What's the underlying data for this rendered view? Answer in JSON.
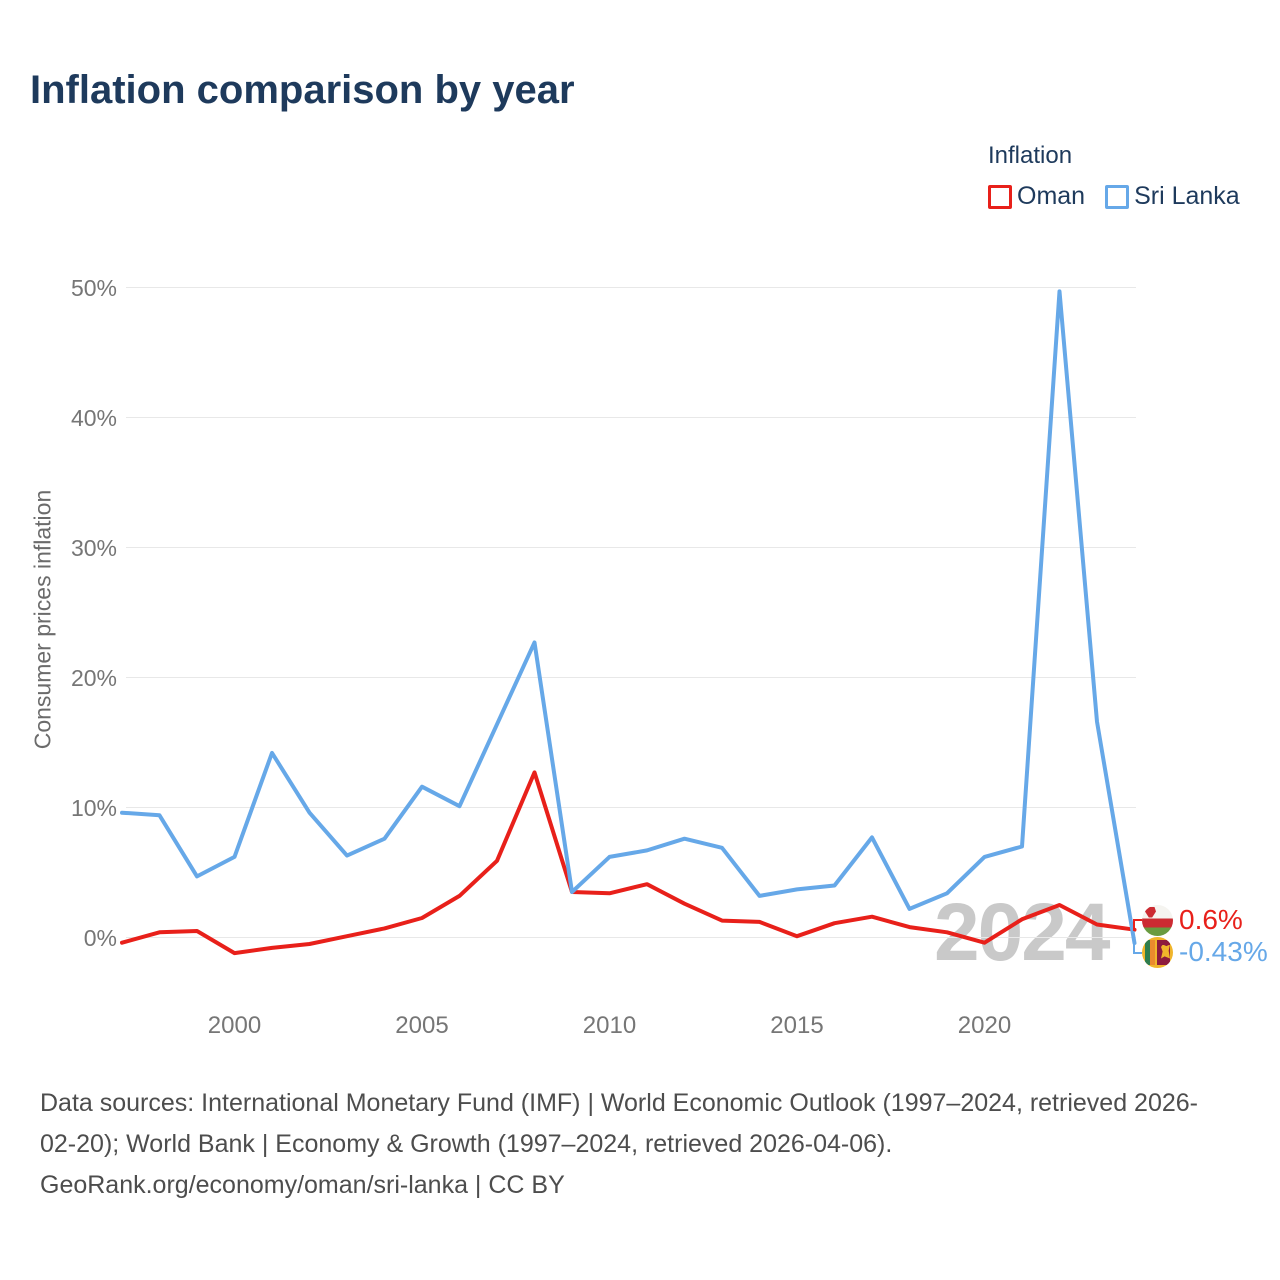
{
  "title": "Inflation comparison by year",
  "watermark": "2024",
  "legend": {
    "title": "Inflation",
    "items": [
      {
        "label": "Oman",
        "color": "#e8201a"
      },
      {
        "label": "Sri Lanka",
        "color": "#66a8e8"
      }
    ]
  },
  "end_labels": {
    "oman": {
      "flag_icon": "oman-flag-icon",
      "value": "0.6%"
    },
    "sri_lanka": {
      "flag_icon": "sri-lanka-flag-icon",
      "value": "-0.43%"
    }
  },
  "footer": {
    "lines": [
      "Data sources: International Monetary Fund (IMF) | World Economic Outlook (1997–2024, retrieved 2026-",
      "02-20); World Bank | Economy & Growth (1997–2024, retrieved 2026-04-06).",
      "GeoRank.org/economy/oman/sri-lanka | CC BY"
    ]
  },
  "chart_data": {
    "type": "line",
    "title": "Inflation comparison by year",
    "xlabel": "",
    "ylabel": "Consumer prices inflation",
    "x": [
      1997,
      1998,
      1999,
      2000,
      2001,
      2002,
      2003,
      2004,
      2005,
      2006,
      2007,
      2008,
      2009,
      2010,
      2011,
      2012,
      2013,
      2014,
      2015,
      2016,
      2017,
      2018,
      2019,
      2020,
      2021,
      2022,
      2023,
      2024
    ],
    "series": [
      {
        "name": "Oman",
        "color": "#e8201a",
        "values": [
          -0.4,
          0.4,
          0.5,
          -1.2,
          -0.8,
          -0.5,
          0.1,
          0.7,
          1.5,
          3.2,
          5.9,
          12.7,
          3.5,
          3.4,
          4.1,
          2.6,
          1.3,
          1.2,
          0.1,
          1.1,
          1.6,
          0.8,
          0.4,
          -0.4,
          1.4,
          2.5,
          1.0,
          0.6
        ]
      },
      {
        "name": "Sri Lanka",
        "color": "#66a8e8",
        "values": [
          9.6,
          9.4,
          4.7,
          6.2,
          14.2,
          9.6,
          6.3,
          7.6,
          11.6,
          10.1,
          16.4,
          22.7,
          3.5,
          6.2,
          6.7,
          7.6,
          6.9,
          3.2,
          3.7,
          4.0,
          7.7,
          2.2,
          3.4,
          6.2,
          7.0,
          49.7,
          16.6,
          -0.43
        ]
      }
    ],
    "xticks": [
      2000,
      2005,
      2010,
      2015,
      2020
    ],
    "yticks": [
      0,
      10,
      20,
      30,
      40,
      50
    ],
    "ytick_suffix": "%",
    "xlim": [
      1997,
      2024
    ],
    "ylim": [
      -3,
      52
    ],
    "grid": "horizontal",
    "legend_position": "top-right"
  }
}
